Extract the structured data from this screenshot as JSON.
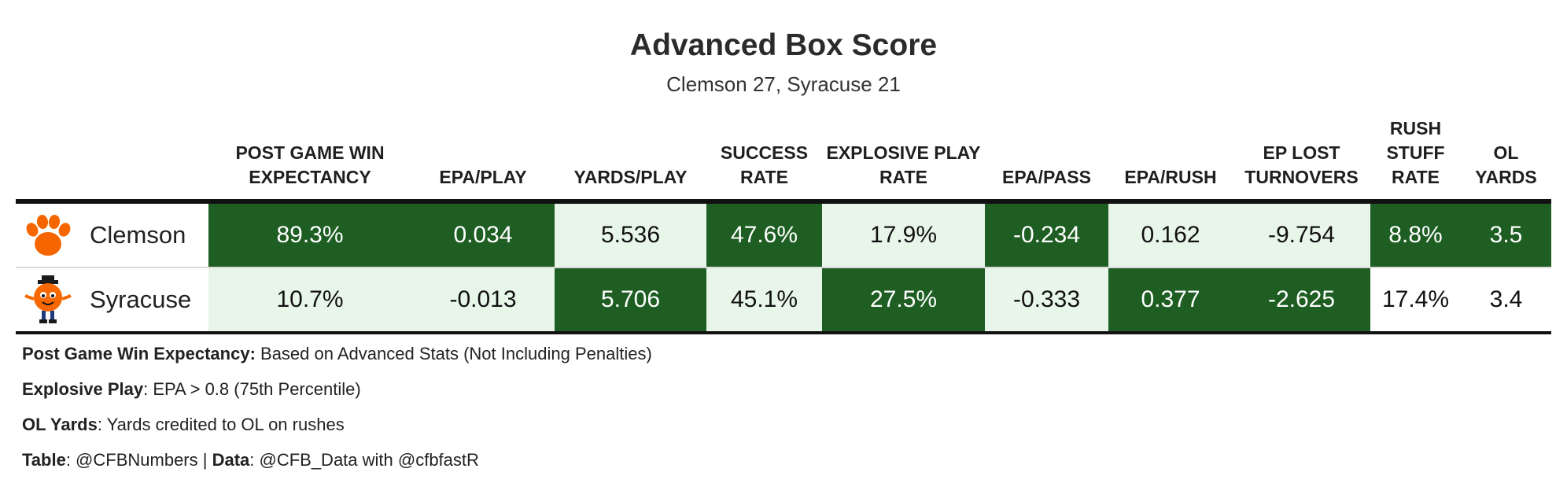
{
  "title": "Advanced Box Score",
  "subtitle": "Clemson 27, Syracuse 21",
  "chart_data": {
    "type": "table",
    "title": "Advanced Box Score",
    "subtitle": "Clemson 27, Syracuse 21",
    "columns": [
      {
        "key": "team",
        "label": ""
      },
      {
        "key": "wp",
        "label": "POST GAME WIN EXPECTANCY"
      },
      {
        "key": "epa_play",
        "label": "EPA/PLAY"
      },
      {
        "key": "ypp",
        "label": "YARDS/PLAY"
      },
      {
        "key": "success",
        "label": "SUCCESS RATE"
      },
      {
        "key": "explosive",
        "label": "EXPLOSIVE PLAY RATE"
      },
      {
        "key": "epa_pass",
        "label": "EPA/PASS"
      },
      {
        "key": "epa_rush",
        "label": "EPA/RUSH"
      },
      {
        "key": "ep_lost",
        "label": "EP LOST TURNOVERS"
      },
      {
        "key": "stuff",
        "label": "RUSH STUFF RATE"
      },
      {
        "key": "ol",
        "label": "OL YARDS"
      }
    ],
    "rows": [
      {
        "team": "Clemson",
        "logo": "clemson-tiger-paw-icon",
        "cells": [
          {
            "value": "89.3%",
            "shade": "dark"
          },
          {
            "value": "0.034",
            "shade": "dark"
          },
          {
            "value": "5.536",
            "shade": "light"
          },
          {
            "value": "47.6%",
            "shade": "dark"
          },
          {
            "value": "17.9%",
            "shade": "light"
          },
          {
            "value": "-0.234",
            "shade": "dark"
          },
          {
            "value": "0.162",
            "shade": "light"
          },
          {
            "value": "-9.754",
            "shade": "light"
          },
          {
            "value": "8.8%",
            "shade": "dark"
          },
          {
            "value": "3.5",
            "shade": "dark"
          }
        ]
      },
      {
        "team": "Syracuse",
        "logo": "syracuse-otto-orange-icon",
        "cells": [
          {
            "value": "10.7%",
            "shade": "light"
          },
          {
            "value": "-0.013",
            "shade": "light"
          },
          {
            "value": "5.706",
            "shade": "dark"
          },
          {
            "value": "45.1%",
            "shade": "light"
          },
          {
            "value": "27.5%",
            "shade": "dark"
          },
          {
            "value": "-0.333",
            "shade": "light"
          },
          {
            "value": "0.377",
            "shade": "dark"
          },
          {
            "value": "-2.625",
            "shade": "dark"
          },
          {
            "value": "17.4%",
            "shade": "plain"
          },
          {
            "value": "3.4",
            "shade": "plain"
          }
        ]
      }
    ]
  },
  "colors": {
    "dark": "#1e5e22",
    "light": "#e8f5e9",
    "clemson_orange": "#f56600",
    "syracuse_orange": "#f76900"
  },
  "notes": [
    {
      "parts": [
        {
          "text": "Post Game Win Expectancy:",
          "bold": true
        },
        {
          "text": " Based on Advanced Stats (Not Including Penalties)",
          "bold": false
        }
      ]
    },
    {
      "parts": [
        {
          "text": "Explosive Play",
          "bold": true
        },
        {
          "text": ": EPA > 0.8 (75th Percentile)",
          "bold": false
        }
      ]
    },
    {
      "parts": [
        {
          "text": "OL Yards",
          "bold": true
        },
        {
          "text": ": Yards credited to OL on rushes",
          "bold": false
        }
      ]
    },
    {
      "parts": [
        {
          "text": "Table",
          "bold": true
        },
        {
          "text": ": @CFBNumbers | ",
          "bold": false
        },
        {
          "text": "Data",
          "bold": true
        },
        {
          "text": ": @CFB_Data with @cfbfastR",
          "bold": false
        }
      ]
    }
  ]
}
